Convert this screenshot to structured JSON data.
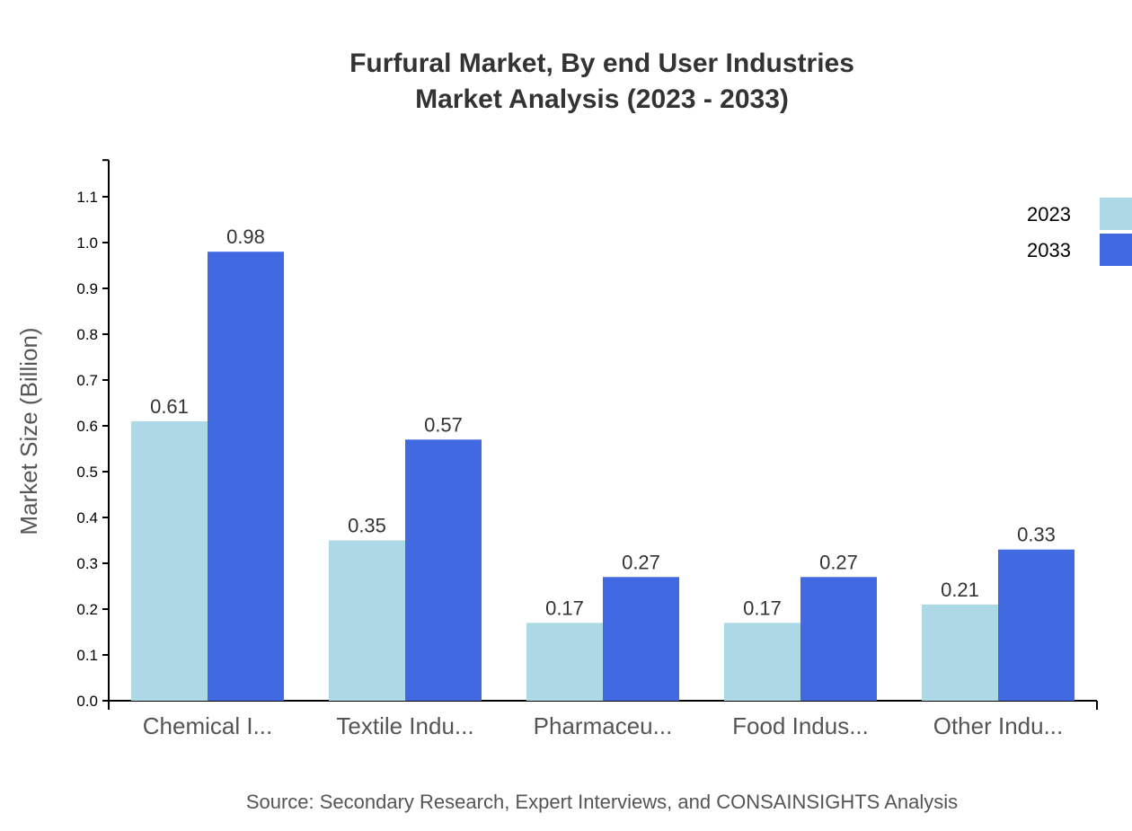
{
  "chart_data": {
    "type": "bar",
    "title": [
      "Furfural Market, By end User Industries",
      "Market Analysis (2023 - 2033)"
    ],
    "xlabel": "",
    "ylabel": "Market Size (Billion)",
    "ylim": [
      0,
      1.18
    ],
    "yticks": [
      "0.0",
      "0.1",
      "0.2",
      "0.3",
      "0.4",
      "0.5",
      "0.6",
      "0.7",
      "0.8",
      "0.9",
      "1.0",
      "1.1"
    ],
    "categories": [
      "Chemical I...",
      "Textile Indu...",
      "Pharmaceu...",
      "Food Indus...",
      "Other Indu..."
    ],
    "series": [
      {
        "name": "2023",
        "color": "#add8e6",
        "values": [
          0.61,
          0.35,
          0.17,
          0.17,
          0.21
        ]
      },
      {
        "name": "2033",
        "color": "#4169e1",
        "values": [
          0.98,
          0.57,
          0.27,
          0.27,
          0.33
        ]
      }
    ],
    "grid": false,
    "legend": "top-right",
    "source": "Source: Secondary Research, Expert Interviews, and CONSAINSIGHTS Analysis"
  }
}
